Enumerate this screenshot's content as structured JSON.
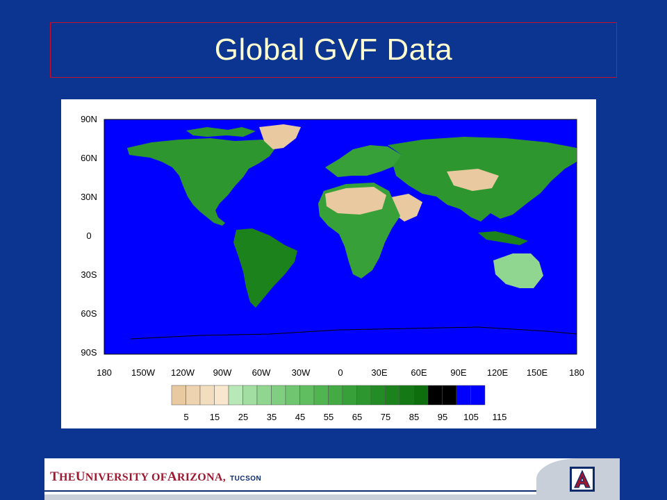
{
  "slide": {
    "title": "Global GVF Data",
    "background": "#0B3591",
    "title_color": "#FFFFD0"
  },
  "map": {
    "ocean_color": "#0000FF",
    "lat_labels": [
      "90N",
      "60N",
      "30N",
      "0",
      "30S",
      "60S",
      "90S"
    ],
    "lon_labels": [
      "180",
      "150W",
      "120W",
      "90W",
      "60W",
      "30W",
      "0",
      "30E",
      "60E",
      "90E",
      "120E",
      "150E",
      "180"
    ]
  },
  "colorbar": {
    "labels": [
      "5",
      "15",
      "25",
      "35",
      "45",
      "55",
      "65",
      "75",
      "85",
      "95",
      "105",
      "115"
    ],
    "colors": [
      "#E8C9A0",
      "#EDD3B0",
      "#F2DDBE",
      "#F8E7CE",
      "#B8E8B8",
      "#A2DEA2",
      "#90D690",
      "#80CE80",
      "#70C670",
      "#60BE60",
      "#50B450",
      "#44AA44",
      "#38A038",
      "#2E962E",
      "#248C24",
      "#1C821C",
      "#147814",
      "#0E6E0E",
      "#000000",
      "#000000",
      "#0000FF",
      "#0000FF"
    ]
  },
  "footer": {
    "the": "T",
    "the_rest": "HE ",
    "u": "U",
    "u_rest": "NIVERSITY OF ",
    "a": "A",
    "a_rest": "RIZONA,",
    "city": "TUCSON",
    "logo_letter": "A",
    "brand_red": "#A0182F",
    "brand_navy": "#0B2A6B"
  }
}
